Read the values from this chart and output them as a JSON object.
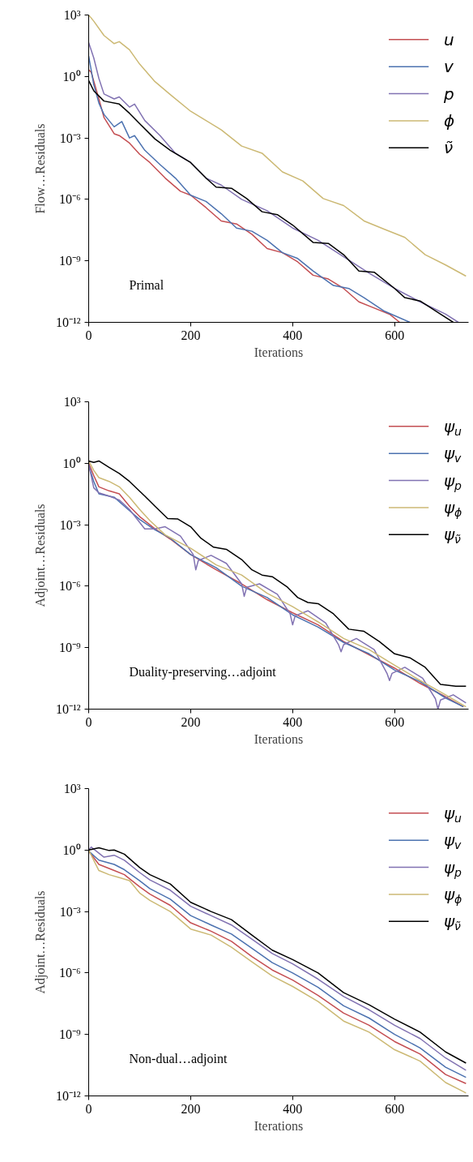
{
  "chart_data": [
    {
      "type": "line",
      "xlabel": "Iterations",
      "ylabel": "Flow…Residuals",
      "log": true,
      "grid": false,
      "legend": "top right",
      "xlim": [
        0,
        745
      ],
      "ylim": [
        1e-12,
        1000
      ],
      "xticks": [
        0,
        200,
        400,
        600
      ],
      "yticks": [
        {
          "value": 1000,
          "label": "10³"
        },
        {
          "value": 1,
          "label": "10⁰"
        },
        {
          "value": 0.001,
          "label": "10⁻³"
        },
        {
          "value": 1e-06,
          "label": "10⁻⁶"
        },
        {
          "value": 1e-09,
          "label": "10⁻⁹"
        },
        {
          "value": 1e-12,
          "label": "10⁻¹²"
        }
      ],
      "annotations": [
        "Primal"
      ],
      "series": [
        {
          "name": "u",
          "color": "#c44e52",
          "x": [
            0,
            5,
            20,
            30,
            50,
            60,
            80,
            100,
            120,
            150,
            180,
            200,
            230,
            260,
            290,
            320,
            350,
            380,
            410,
            440,
            470,
            500,
            530,
            560,
            590,
            610
          ],
          "values": [
            2.1,
            1.6,
            0.08,
            0.01,
            0.0016,
            0.0013,
            0.00056,
            0.00016,
            6.3e-05,
            1.1e-05,
            2.5e-06,
            1.6e-06,
            4e-07,
            8.9e-08,
            6.3e-08,
            2e-08,
            4e-09,
            2.5e-09,
            8.9e-10,
            2e-10,
            1.3e-10,
            4.5e-11,
            1e-11,
            5e-12,
            2.5e-12,
            1e-12
          ]
        },
        {
          "name": "v",
          "color": "#4c72b0",
          "x": [
            0,
            10,
            20,
            30,
            50,
            65,
            80,
            90,
            110,
            140,
            170,
            200,
            230,
            260,
            290,
            320,
            350,
            380,
            410,
            440,
            480,
            510,
            540,
            580,
            630
          ],
          "values": [
            10,
            0.4,
            0.05,
            0.014,
            0.0035,
            0.0063,
            0.001,
            0.0013,
            0.00025,
            5e-05,
            1.1e-05,
            1.6e-06,
            8e-07,
            2e-07,
            4e-08,
            2.8e-08,
            1e-08,
            2.5e-09,
            1.3e-09,
            3.2e-10,
            6.3e-11,
            4.5e-11,
            1.6e-11,
            3.5e-12,
            1e-12
          ]
        },
        {
          "name": "p",
          "color": "#8172b2",
          "x": [
            0,
            10,
            20,
            30,
            50,
            60,
            80,
            90,
            110,
            140,
            170,
            200,
            230,
            260,
            300,
            350,
            400,
            450,
            500,
            550,
            600,
            650,
            700,
            725
          ],
          "values": [
            45,
            8,
            0.8,
            0.14,
            0.08,
            0.1,
            0.032,
            0.045,
            0.0071,
            0.0013,
            0.00018,
            6.3e-05,
            1.1e-05,
            5e-06,
            1e-06,
            2.8e-07,
            4e-08,
            1e-08,
            1.6e-09,
            2.5e-10,
            4.5e-11,
            1e-11,
            2.5e-12,
            1e-12
          ]
        },
        {
          "name": "ϕ",
          "color": "#ccb974",
          "x": [
            0,
            10,
            30,
            50,
            60,
            80,
            100,
            130,
            160,
            200,
            230,
            260,
            300,
            340,
            380,
            420,
            460,
            500,
            540,
            580,
            620,
            660,
            700,
            740
          ],
          "values": [
            1000,
            500,
            100,
            40,
            50,
            20,
            4,
            0.56,
            0.13,
            0.02,
            0.0071,
            0.0025,
            0.0004,
            0.00018,
            2.2e-05,
            8e-06,
            1.1e-06,
            5e-07,
            8.9e-08,
            3.5e-08,
            1.4e-08,
            2e-09,
            6.3e-10,
            1.8e-10
          ]
        },
        {
          "name": "ν̃",
          "color": "#000000",
          "x": [
            0,
            10,
            30,
            60,
            80,
            100,
            130,
            160,
            200,
            230,
            250,
            280,
            310,
            340,
            370,
            400,
            440,
            470,
            500,
            530,
            560,
            600,
            620,
            650,
            690,
            715
          ],
          "values": [
            0.63,
            0.2,
            0.063,
            0.045,
            0.016,
            0.005,
            0.00089,
            0.00025,
            6.3e-05,
            1.1e-05,
            4e-06,
            3.5e-06,
            1.1e-06,
            2.5e-07,
            1.8e-07,
            5.6e-08,
            8e-09,
            7.1e-09,
            2e-09,
            3.2e-10,
            2.8e-10,
            4.5e-11,
            1.6e-11,
            1.1e-11,
            2.5e-12,
            1e-12
          ]
        }
      ]
    },
    {
      "type": "line",
      "xlabel": "Iterations",
      "ylabel": "Adjoint…Residuals",
      "log": true,
      "grid": false,
      "legend": "top right",
      "xlim": [
        0,
        745
      ],
      "ylim": [
        1e-12,
        1000
      ],
      "xticks": [
        0,
        200,
        400,
        600
      ],
      "yticks": [
        {
          "value": 1000,
          "label": "10³"
        },
        {
          "value": 1,
          "label": "10⁰"
        },
        {
          "value": 0.001,
          "label": "10⁻³"
        },
        {
          "value": 1e-06,
          "label": "10⁻⁶"
        },
        {
          "value": 1e-09,
          "label": "10⁻⁹"
        },
        {
          "value": 1e-12,
          "label": "10⁻¹²"
        }
      ],
      "annotations": [
        "Duality-preserving…adjoint"
      ],
      "series": [
        {
          "name": "ψ$_{u}$",
          "color": "#c44e52",
          "x": [
            0,
            10,
            20,
            40,
            60,
            80,
            100,
            130,
            160,
            200,
            250,
            300,
            350,
            400,
            450,
            500,
            550,
            600,
            650,
            700,
            735
          ],
          "values": [
            1,
            0.25,
            0.071,
            0.045,
            0.032,
            0.008,
            0.0025,
            0.00063,
            0.0002,
            3.5e-05,
            6.3e-06,
            1.3e-06,
            2.2e-07,
            5e-08,
            1.3e-08,
            2e-09,
            4.5e-10,
            1e-10,
            1.8e-11,
            4e-12,
            1.3e-12
          ]
        },
        {
          "name": "ψ$_{v}$",
          "color": "#4c72b0",
          "x": [
            0,
            10,
            20,
            50,
            70,
            100,
            130,
            160,
            200,
            250,
            300,
            350,
            400,
            450,
            500,
            550,
            600,
            650,
            700,
            735
          ],
          "values": [
            0.8,
            0.13,
            0.032,
            0.022,
            0.008,
            0.0018,
            0.00056,
            0.00022,
            3.5e-05,
            8e-06,
            1e-06,
            2.8e-07,
            4e-08,
            1e-08,
            1.8e-09,
            5e-10,
            8e-11,
            2.2e-11,
            3.5e-12,
            1.3e-12
          ]
        },
        {
          "name": "ψ$_{p}$",
          "color": "#8172b2",
          "x": [
            0,
            10,
            20,
            40,
            60,
            80,
            110,
            130,
            150,
            180,
            205,
            210,
            215,
            240,
            270,
            300,
            305,
            310,
            335,
            370,
            395,
            400,
            405,
            430,
            465,
            490,
            495,
            500,
            525,
            560,
            585,
            590,
            595,
            620,
            655,
            680,
            685,
            690,
            715,
            740
          ],
          "values": [
            0.89,
            0.063,
            0.036,
            0.025,
            0.016,
            0.0056,
            0.00063,
            0.00063,
            0.0008,
            0.00028,
            3.5e-05,
            6.3e-06,
            1.8e-05,
            3.2e-05,
            1.3e-05,
            1.3e-06,
            3.2e-07,
            8.9e-07,
            1.3e-06,
            4e-07,
            4.5e-08,
            1.3e-08,
            3.6e-08,
            6.3e-08,
            1.6e-08,
            1.4e-09,
            6.3e-10,
            1.4e-09,
            2.8e-09,
            8e-10,
            5.6e-11,
            2.5e-11,
            5.6e-11,
            1.1e-10,
            3.2e-11,
            3.2e-12,
            1e-12,
            2.8e-12,
            5e-12,
            2e-12
          ]
        },
        {
          "name": "ψ$_{ϕ}$",
          "color": "#ccb974",
          "x": [
            0,
            10,
            20,
            40,
            60,
            80,
            100,
            120,
            150,
            200,
            250,
            300,
            350,
            400,
            450,
            500,
            550,
            600,
            650,
            700,
            740
          ],
          "values": [
            1.3,
            0.45,
            0.2,
            0.13,
            0.071,
            0.022,
            0.0056,
            0.0016,
            0.00032,
            7.1e-05,
            1.1e-05,
            3.5e-06,
            4.5e-07,
            1e-07,
            1.8e-08,
            2.8e-09,
            8e-10,
            1.4e-10,
            2.5e-11,
            5e-12,
            1.3e-12
          ]
        },
        {
          "name": "ψ$_{ν̃}$",
          "color": "#000000",
          "x": [
            0,
            10,
            20,
            40,
            60,
            80,
            110,
            130,
            155,
            175,
            200,
            220,
            245,
            270,
            300,
            320,
            340,
            360,
            390,
            410,
            430,
            450,
            480,
            510,
            540,
            570,
            600,
            630,
            660,
            690,
            720,
            740
          ],
          "values": [
            1.3,
            1.1,
            1.3,
            0.63,
            0.32,
            0.13,
            0.025,
            0.008,
            0.002,
            0.0019,
            0.0008,
            0.00022,
            8e-05,
            6.3e-05,
            2e-05,
            6.3e-06,
            3.5e-06,
            2.9e-06,
            8.9e-07,
            2.8e-07,
            1.6e-07,
            1.4e-07,
            4.5e-08,
            8e-09,
            6.3e-09,
            2e-09,
            5e-10,
            3.2e-10,
            1.1e-10,
            1.6e-11,
            1.3e-11,
            1.3e-11
          ]
        }
      ]
    },
    {
      "type": "line",
      "xlabel": "Iterations",
      "ylabel": "Adjoint…Residuals",
      "log": true,
      "grid": false,
      "legend": "top right",
      "xlim": [
        0,
        745
      ],
      "ylim": [
        1e-12,
        1000
      ],
      "xticks": [
        0,
        200,
        400,
        600
      ],
      "yticks": [
        {
          "value": 1000,
          "label": "10³"
        },
        {
          "value": 1,
          "label": "10⁰"
        },
        {
          "value": 0.001,
          "label": "10⁻³"
        },
        {
          "value": 1e-06,
          "label": "10⁻⁶"
        },
        {
          "value": 1e-09,
          "label": "10⁻⁹"
        },
        {
          "value": 1e-12,
          "label": "10⁻¹²"
        }
      ],
      "annotations": [
        "Non-dual…adjoint"
      ],
      "series": [
        {
          "name": "ψ$_{u}$",
          "color": "#c44e52",
          "x": [
            0,
            20,
            50,
            70,
            100,
            120,
            160,
            200,
            240,
            280,
            320,
            360,
            400,
            450,
            500,
            550,
            600,
            650,
            700,
            740
          ],
          "values": [
            0.89,
            0.2,
            0.1,
            0.063,
            0.016,
            0.0071,
            0.002,
            0.00028,
            0.00011,
            3.5e-05,
            6.3e-06,
            1.4e-06,
            4.5e-07,
            8e-08,
            1.1e-08,
            2.8e-09,
            4.5e-10,
            1.1e-10,
            1.1e-11,
            4e-12
          ]
        },
        {
          "name": "ψ$_{v}$",
          "color": "#4c72b0",
          "x": [
            0,
            20,
            50,
            70,
            100,
            120,
            160,
            200,
            240,
            280,
            320,
            360,
            400,
            450,
            500,
            550,
            600,
            650,
            700,
            740
          ],
          "values": [
            0.89,
            0.32,
            0.2,
            0.11,
            0.032,
            0.013,
            0.004,
            0.00063,
            0.00022,
            8e-05,
            1.6e-05,
            3.2e-06,
            1e-06,
            2e-07,
            2.5e-08,
            6.3e-09,
            1e-09,
            2.2e-10,
            2.5e-11,
            8e-12
          ]
        },
        {
          "name": "ψ$_{p}$",
          "color": "#8172b2",
          "x": [
            0,
            5,
            30,
            50,
            70,
            100,
            120,
            160,
            200,
            240,
            280,
            320,
            360,
            400,
            450,
            500,
            550,
            600,
            650,
            700,
            740
          ],
          "values": [
            1,
            1.4,
            0.45,
            0.56,
            0.32,
            0.08,
            0.035,
            0.011,
            0.0018,
            0.00063,
            0.00022,
            4.5e-05,
            8.9e-06,
            2.8e-06,
            5e-07,
            7.1e-08,
            1.6e-08,
            2.8e-09,
            6.3e-10,
            7.1e-11,
            1.8e-11
          ]
        },
        {
          "name": "ψ$_{ϕ}$",
          "color": "#ccb974",
          "x": [
            0,
            20,
            40,
            60,
            80,
            100,
            120,
            160,
            200,
            240,
            280,
            320,
            360,
            400,
            450,
            500,
            550,
            600,
            650,
            700,
            740
          ],
          "values": [
            1,
            0.1,
            0.063,
            0.045,
            0.032,
            0.008,
            0.0035,
            0.001,
            0.00014,
            7.1e-05,
            1.8e-05,
            3.5e-06,
            7.1e-07,
            2.2e-07,
            4e-08,
            4.5e-09,
            1.3e-09,
            1.8e-10,
            5e-11,
            4.5e-12,
            1.4e-12
          ]
        },
        {
          "name": "ψ$_{ν̃}$",
          "color": "#000000",
          "x": [
            0,
            20,
            40,
            50,
            70,
            100,
            120,
            160,
            200,
            240,
            280,
            320,
            360,
            400,
            450,
            500,
            550,
            600,
            650,
            700,
            740
          ],
          "values": [
            1,
            1.3,
            0.95,
            1,
            0.63,
            0.14,
            0.063,
            0.022,
            0.0028,
            0.001,
            0.0004,
            7.1e-05,
            1.3e-05,
            4.5e-06,
            1e-06,
            1.1e-07,
            2.8e-08,
            5.6e-09,
            1.3e-09,
            1.4e-10,
            4e-11
          ]
        }
      ]
    }
  ]
}
